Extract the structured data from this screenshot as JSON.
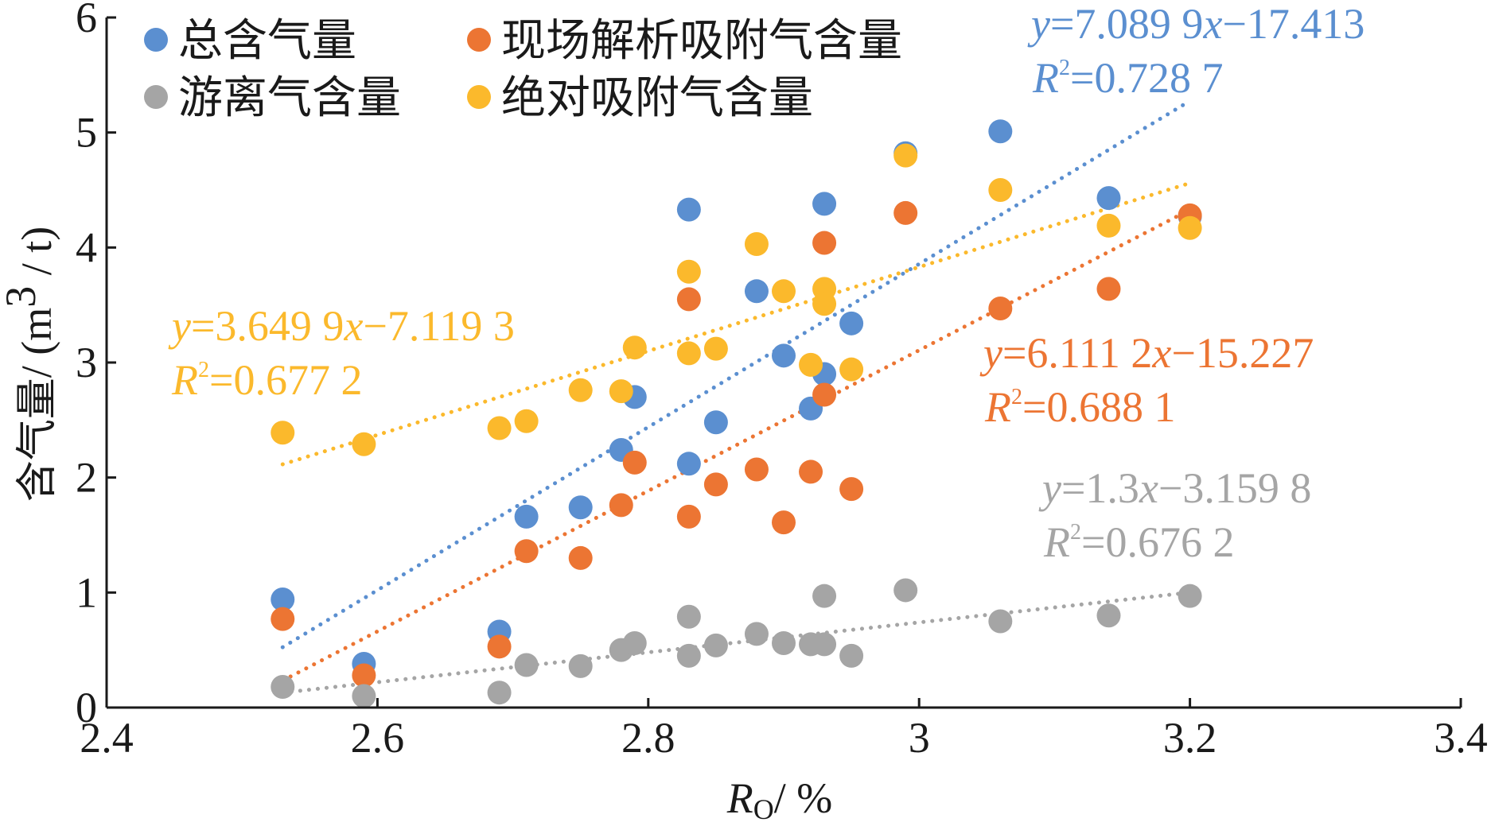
{
  "chart_data": {
    "type": "scatter",
    "xlabel_var": "R",
    "xlabel_sub": "O",
    "xlabel_unit": "/ %",
    "ylabel_cn": "含气量",
    "ylabel_unit_a": "/ (m",
    "ylabel_unit_sup": "3",
    "ylabel_unit_b": " / t)",
    "xlim": [
      2.4,
      3.4
    ],
    "ylim": [
      0,
      6
    ],
    "x_ticks": [
      "2.4",
      "2.6",
      "2.8",
      "3",
      "3.2",
      "3.4"
    ],
    "y_ticks": [
      "0",
      "1",
      "2",
      "3",
      "4",
      "5",
      "6"
    ],
    "grid": false,
    "legend_position": "top-left",
    "series": [
      {
        "name": "总含气量",
        "color": "#5b8fd0",
        "trend": {
          "slope": 7.0899,
          "intercept": -17.413,
          "x_range": [
            2.53,
            3.2
          ]
        },
        "equation": {
          "y": "y",
          "eq1": "=7.089 9",
          "x": "x",
          "eq2": "−17.413",
          "r": "R",
          "sup": "2",
          "r2": "=0.728 7"
        },
        "points": [
          [
            2.53,
            0.94
          ],
          [
            2.59,
            0.38
          ],
          [
            2.69,
            0.66
          ],
          [
            2.71,
            1.66
          ],
          [
            2.75,
            1.74
          ],
          [
            2.78,
            2.24
          ],
          [
            2.79,
            2.7
          ],
          [
            2.83,
            4.33
          ],
          [
            2.83,
            2.12
          ],
          [
            2.85,
            2.48
          ],
          [
            2.88,
            3.62
          ],
          [
            2.9,
            3.06
          ],
          [
            2.92,
            2.6
          ],
          [
            2.93,
            4.38
          ],
          [
            2.93,
            2.9
          ],
          [
            2.95,
            3.34
          ],
          [
            2.99,
            4.82
          ],
          [
            3.06,
            5.01
          ],
          [
            3.14,
            4.43
          ],
          [
            3.2,
            4.27
          ]
        ]
      },
      {
        "name": "现场解析吸附气含量",
        "color": "#ec7533",
        "trend": {
          "slope": 6.1112,
          "intercept": -15.227,
          "x_range": [
            2.53,
            3.2
          ]
        },
        "equation": {
          "y": "y",
          "eq1": "=6.111 2",
          "x": "x",
          "eq2": "−15.227",
          "r": "R",
          "sup": "2",
          "r2": "=0.688 1"
        },
        "points": [
          [
            2.53,
            0.77
          ],
          [
            2.59,
            0.28
          ],
          [
            2.69,
            0.53
          ],
          [
            2.71,
            1.36
          ],
          [
            2.75,
            1.3
          ],
          [
            2.78,
            1.76
          ],
          [
            2.79,
            2.13
          ],
          [
            2.83,
            3.55
          ],
          [
            2.83,
            1.66
          ],
          [
            2.85,
            1.94
          ],
          [
            2.88,
            2.07
          ],
          [
            2.9,
            1.61
          ],
          [
            2.92,
            2.05
          ],
          [
            2.93,
            4.04
          ],
          [
            2.93,
            2.72
          ],
          [
            2.95,
            1.9
          ],
          [
            2.99,
            4.3
          ],
          [
            3.06,
            3.47
          ],
          [
            3.14,
            3.64
          ],
          [
            3.2,
            4.28
          ]
        ]
      },
      {
        "name": "游离气含量",
        "color": "#a5a5a5",
        "trend": {
          "slope": 1.3,
          "intercept": -3.1598,
          "x_range": [
            2.53,
            3.2
          ]
        },
        "equation": {
          "y": "y",
          "eq1": "=1.3",
          "x": "x",
          "eq2": "−3.159 8",
          "r": "R",
          "sup": "2",
          "r2": "=0.676 2"
        },
        "points": [
          [
            2.53,
            0.18
          ],
          [
            2.59,
            0.1
          ],
          [
            2.69,
            0.13
          ],
          [
            2.71,
            0.37
          ],
          [
            2.75,
            0.36
          ],
          [
            2.78,
            0.5
          ],
          [
            2.79,
            0.56
          ],
          [
            2.83,
            0.79
          ],
          [
            2.83,
            0.45
          ],
          [
            2.85,
            0.54
          ],
          [
            2.88,
            0.64
          ],
          [
            2.9,
            0.56
          ],
          [
            2.92,
            0.55
          ],
          [
            2.93,
            0.97
          ],
          [
            2.93,
            0.55
          ],
          [
            2.95,
            0.45
          ],
          [
            2.99,
            1.02
          ],
          [
            3.06,
            0.75
          ],
          [
            3.14,
            0.8
          ],
          [
            3.2,
            0.97
          ]
        ]
      },
      {
        "name": "绝对吸附气含量",
        "color": "#fbb92c",
        "trend": {
          "slope": 3.6499,
          "intercept": -7.1193,
          "x_range": [
            2.53,
            3.2
          ]
        },
        "equation": {
          "y": "y",
          "eq1": "=3.649 9",
          "x": "x",
          "eq2": "−7.119 3",
          "r": "R",
          "sup": "2",
          "r2": "=0.677 2"
        },
        "points": [
          [
            2.53,
            2.39
          ],
          [
            2.59,
            2.29
          ],
          [
            2.69,
            2.43
          ],
          [
            2.71,
            2.49
          ],
          [
            2.75,
            2.76
          ],
          [
            2.78,
            2.75
          ],
          [
            2.79,
            3.13
          ],
          [
            2.83,
            3.79
          ],
          [
            2.83,
            3.08
          ],
          [
            2.85,
            3.12
          ],
          [
            2.88,
            4.03
          ],
          [
            2.9,
            3.62
          ],
          [
            2.92,
            2.98
          ],
          [
            2.93,
            3.64
          ],
          [
            2.93,
            3.51
          ],
          [
            2.95,
            2.94
          ],
          [
            2.99,
            4.8
          ],
          [
            3.06,
            4.5
          ],
          [
            3.14,
            4.19
          ],
          [
            3.2,
            4.17
          ]
        ]
      }
    ]
  }
}
